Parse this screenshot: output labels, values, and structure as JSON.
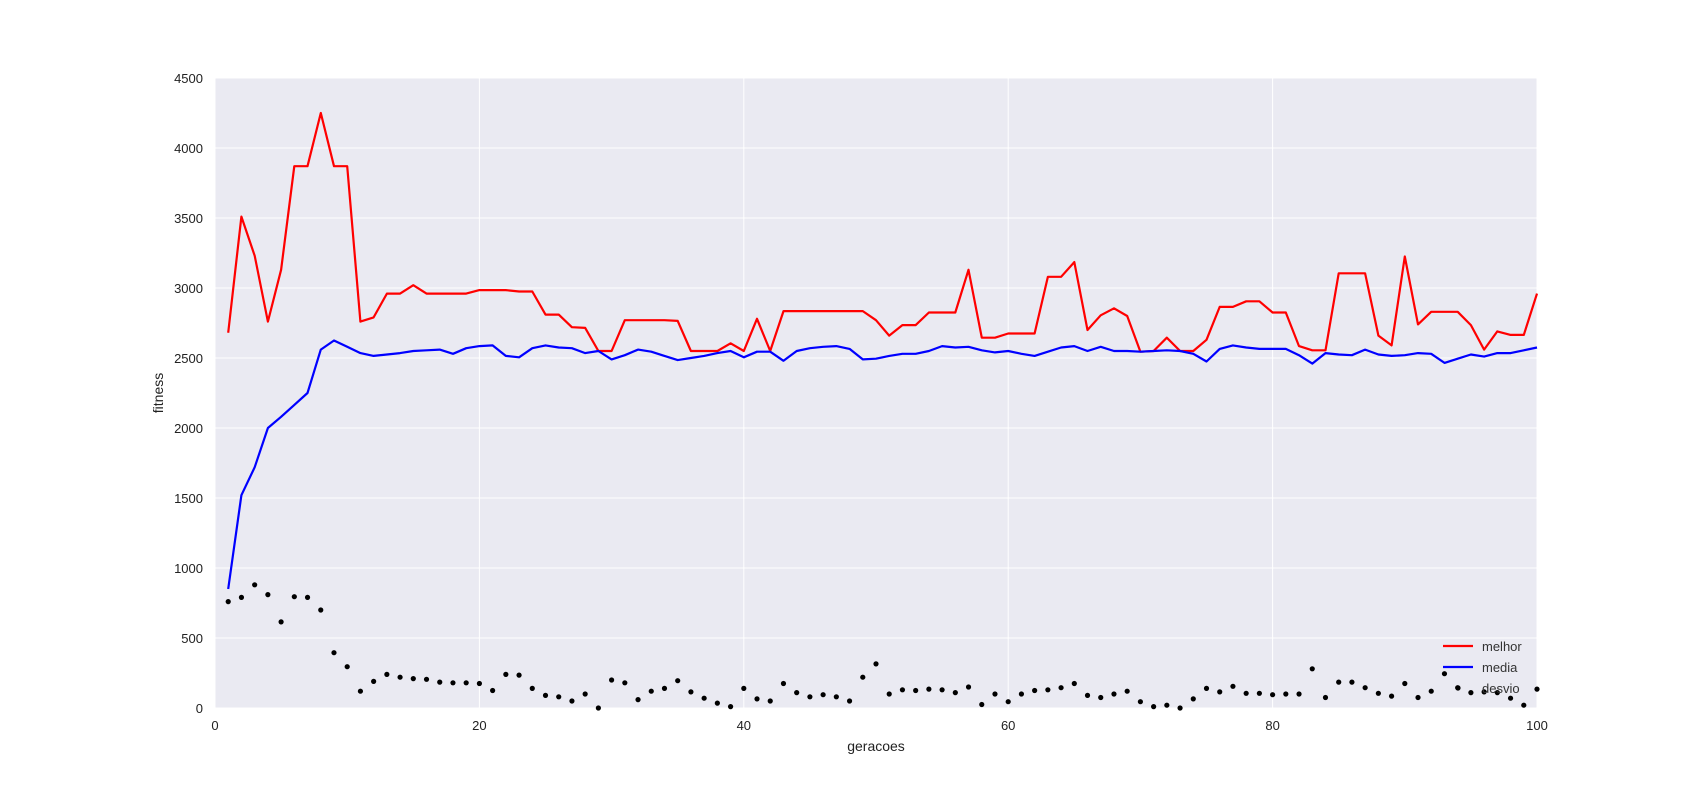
{
  "chart_data": {
    "type": "line",
    "xlabel": "geracoes",
    "ylabel": "fitness",
    "xlim": [
      0,
      100
    ],
    "ylim": [
      0,
      4500
    ],
    "x_ticks": [
      0,
      20,
      40,
      60,
      80,
      100
    ],
    "y_ticks": [
      0,
      500,
      1000,
      1500,
      2000,
      2500,
      3000,
      3500,
      4000,
      4500
    ],
    "grid": true,
    "legend_position": "bottom-right",
    "x": [
      1,
      2,
      3,
      4,
      5,
      6,
      7,
      8,
      9,
      10,
      11,
      12,
      13,
      14,
      15,
      16,
      17,
      18,
      19,
      20,
      21,
      22,
      23,
      24,
      25,
      26,
      27,
      28,
      29,
      30,
      31,
      32,
      33,
      34,
      35,
      36,
      37,
      38,
      39,
      40,
      41,
      42,
      43,
      44,
      45,
      46,
      47,
      48,
      49,
      50,
      51,
      52,
      53,
      54,
      55,
      56,
      57,
      58,
      59,
      60,
      61,
      62,
      63,
      64,
      65,
      66,
      67,
      68,
      69,
      70,
      71,
      72,
      73,
      74,
      75,
      76,
      77,
      78,
      79,
      80,
      81,
      82,
      83,
      84,
      85,
      86,
      87,
      88,
      89,
      90,
      91,
      92,
      93,
      94,
      95,
      96,
      97,
      98,
      99,
      100
    ],
    "series": [
      {
        "name": "melhor",
        "color": "#ff0000",
        "style": "line",
        "values": [
          2680,
          3510,
          3230,
          2760,
          3130,
          3870,
          3870,
          4250,
          3870,
          3870,
          2760,
          2790,
          2960,
          2960,
          3020,
          2960,
          2960,
          2960,
          2960,
          2985,
          2985,
          2985,
          2975,
          2975,
          2810,
          2810,
          2720,
          2715,
          2550,
          2550,
          2770,
          2770,
          2770,
          2770,
          2765,
          2550,
          2550,
          2550,
          2605,
          2550,
          2780,
          2550,
          2835,
          2835,
          2835,
          2835,
          2835,
          2835,
          2835,
          2770,
          2660,
          2735,
          2735,
          2825,
          2825,
          2825,
          3130,
          2645,
          2645,
          2675,
          2675,
          2675,
          3080,
          3080,
          3185,
          2700,
          2805,
          2855,
          2800,
          2545,
          2550,
          2645,
          2550,
          2550,
          2630,
          2865,
          2865,
          2905,
          2905,
          2825,
          2825,
          2585,
          2555,
          2555,
          3105,
          3105,
          3105,
          2660,
          2590,
          3225,
          2740,
          2830,
          2830,
          2830,
          2735,
          2560,
          2690,
          2665,
          2665,
          2960
        ]
      },
      {
        "name": "media",
        "color": "#0000ff",
        "style": "line",
        "values": [
          850,
          1520,
          1720,
          2000,
          2080,
          2165,
          2250,
          2560,
          2625,
          2580,
          2535,
          2515,
          2525,
          2535,
          2550,
          2555,
          2560,
          2530,
          2570,
          2585,
          2590,
          2515,
          2505,
          2570,
          2590,
          2575,
          2570,
          2535,
          2550,
          2490,
          2520,
          2560,
          2545,
          2515,
          2485,
          2500,
          2515,
          2535,
          2550,
          2505,
          2545,
          2545,
          2480,
          2550,
          2570,
          2580,
          2585,
          2565,
          2490,
          2495,
          2515,
          2530,
          2530,
          2550,
          2585,
          2575,
          2580,
          2555,
          2540,
          2550,
          2530,
          2515,
          2545,
          2575,
          2585,
          2550,
          2580,
          2550,
          2550,
          2545,
          2550,
          2555,
          2550,
          2530,
          2475,
          2565,
          2590,
          2575,
          2565,
          2565,
          2565,
          2520,
          2460,
          2535,
          2525,
          2520,
          2560,
          2525,
          2515,
          2520,
          2535,
          2530,
          2465,
          2495,
          2525,
          2510,
          2535,
          2535,
          2555,
          2575
        ]
      },
      {
        "name": "desvio",
        "color": "#000000",
        "style": "scatter",
        "values": [
          760,
          790,
          880,
          810,
          615,
          795,
          790,
          700,
          395,
          295,
          120,
          190,
          240,
          220,
          210,
          205,
          185,
          180,
          180,
          175,
          125,
          240,
          235,
          140,
          90,
          80,
          50,
          100,
          0,
          200,
          180,
          60,
          120,
          140,
          195,
          115,
          70,
          35,
          10,
          140,
          65,
          50,
          175,
          110,
          80,
          95,
          80,
          50,
          220,
          315,
          100,
          130,
          125,
          135,
          130,
          110,
          150,
          25,
          100,
          45,
          100,
          125,
          130,
          145,
          175,
          90,
          75,
          100,
          120,
          45,
          10,
          20,
          0,
          65,
          140,
          115,
          155,
          105,
          105,
          95,
          100,
          100,
          280,
          75,
          185,
          185,
          145,
          105,
          85,
          175,
          75,
          120,
          245,
          145,
          110,
          115,
          110,
          70,
          20,
          135
        ]
      }
    ]
  }
}
